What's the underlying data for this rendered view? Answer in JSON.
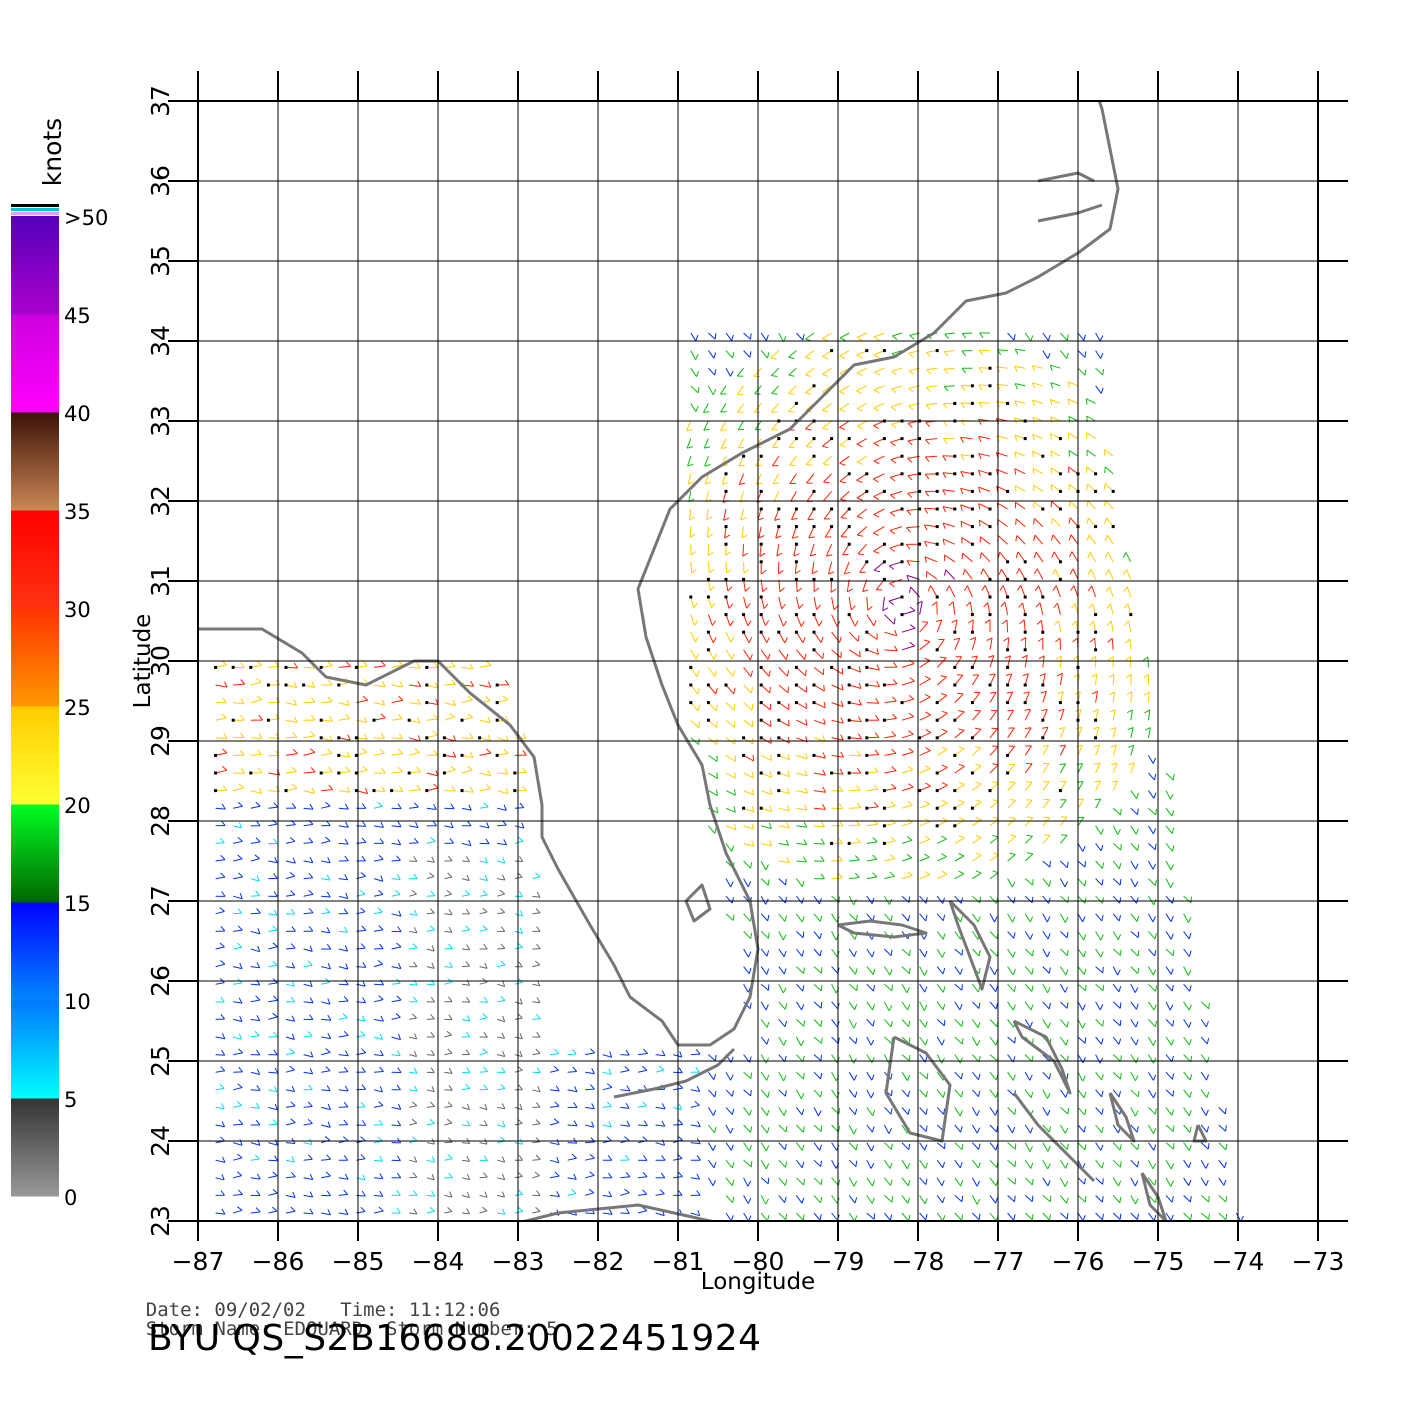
{
  "info": {
    "date_label": "Date:",
    "date": "09/02/02",
    "time_label": "Time:",
    "time": "11:12:06",
    "storm_name_label": "Storm Name:",
    "storm_name": "EDOUARD",
    "storm_number_label": "Storm Number:",
    "storm_number": "5",
    "product_id": "BYU QS_S2B16688.20022451924"
  },
  "map": {
    "x_axis_label": "Longitude",
    "y_axis_label": "Latitude",
    "lon_range": [
      -87,
      -73
    ],
    "lat_range": [
      23,
      37
    ],
    "lon_ticks": [
      "-87",
      "-86",
      "-85",
      "-84",
      "-83",
      "-82",
      "-81",
      "-80",
      "-79",
      "-78",
      "-77",
      "-76",
      "-75",
      "-74",
      "-73"
    ],
    "lat_ticks": [
      "23",
      "24",
      "25",
      "26",
      "27",
      "28",
      "29",
      "30",
      "31",
      "32",
      "33",
      "34",
      "35",
      "36",
      "37"
    ],
    "grid": true,
    "coastline_color": "#777777"
  },
  "colorbar": {
    "unit_label": "knots",
    "tick_labels": [
      "0",
      "5",
      "10",
      "15",
      "20",
      "25",
      "30",
      "35",
      "40",
      "45",
      ">50"
    ],
    "bands": [
      {
        "min": 0,
        "max": 5,
        "top_color": "#333333",
        "bottom_color": "#999999"
      },
      {
        "min": 5,
        "max": 10,
        "top_color": "#0077ff",
        "bottom_color": "#00ffff"
      },
      {
        "min": 10,
        "max": 15,
        "top_color": "#0000ff",
        "bottom_color": "#0088ff"
      },
      {
        "min": 15,
        "max": 20,
        "top_color": "#00ff22",
        "bottom_color": "#006600"
      },
      {
        "min": 20,
        "max": 25,
        "top_color": "#ffcc00",
        "bottom_color": "#ffff33"
      },
      {
        "min": 25,
        "max": 30,
        "top_color": "#ff3300",
        "bottom_color": "#ff9900"
      },
      {
        "min": 30,
        "max": 35,
        "top_color": "#ff0000",
        "bottom_color": "#ff3311"
      },
      {
        "min": 35,
        "max": 40,
        "top_color": "#3a1008",
        "bottom_color": "#cc8855"
      },
      {
        "min": 40,
        "max": 45,
        "top_color": "#cc00dd",
        "bottom_color": "#ff00ff"
      },
      {
        "min": 45,
        "max": 50,
        "top_color": "#5500bb",
        "bottom_color": "#aa00cc"
      }
    ],
    "cap_colors": [
      "#e0a0ff",
      "#00c8c8",
      "#000000"
    ]
  },
  "legend_colors": {
    "calm": "#666666",
    "light": "#00ddee",
    "moderate": "#0033ee",
    "fresh": "#11bb11",
    "strong": "#ffcc00",
    "gale": "#ff2200",
    "storm": "#880088"
  }
}
